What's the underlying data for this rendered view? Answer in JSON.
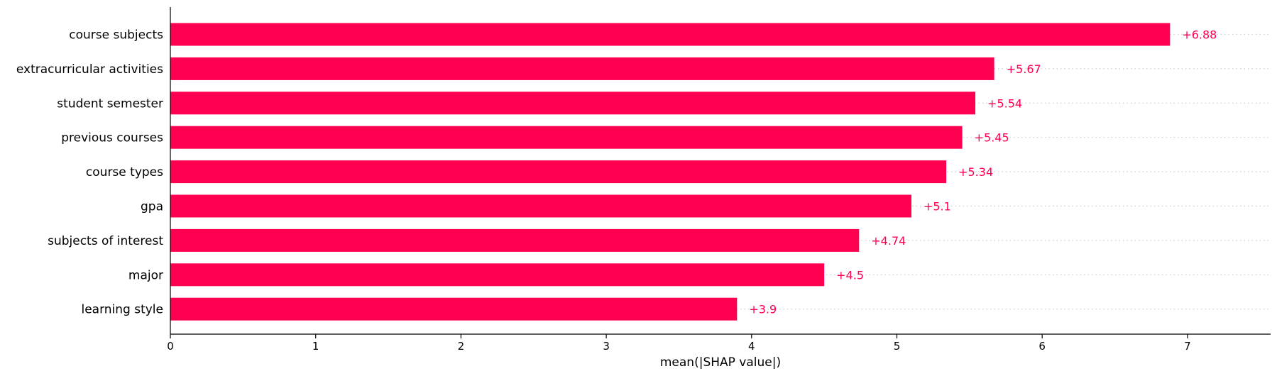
{
  "chart_data": {
    "type": "bar",
    "orientation": "horizontal",
    "categories": [
      "course subjects",
      "extracurricular activities",
      "student semester",
      "previous courses",
      "course types",
      "gpa",
      "subjects of interest",
      "major",
      "learning style"
    ],
    "values": [
      6.88,
      5.67,
      5.54,
      5.45,
      5.34,
      5.1,
      4.74,
      4.5,
      3.9
    ],
    "value_labels": [
      "+6.88",
      "+5.67",
      "+5.54",
      "+5.45",
      "+5.34",
      "+5.1",
      "+4.74",
      "+4.5",
      "+3.9"
    ],
    "xlabel": "mean(|SHAP value|)",
    "ylabel": "",
    "title": "",
    "xlim": [
      0,
      7.58
    ],
    "xticks": [
      0,
      1,
      2,
      3,
      4,
      5,
      6,
      7
    ],
    "xtick_labels": [
      "0",
      "1",
      "2",
      "3",
      "4",
      "5",
      "6",
      "7"
    ],
    "grid": false,
    "bar_color": "#ff0051",
    "label_color": "#ff0051"
  }
}
